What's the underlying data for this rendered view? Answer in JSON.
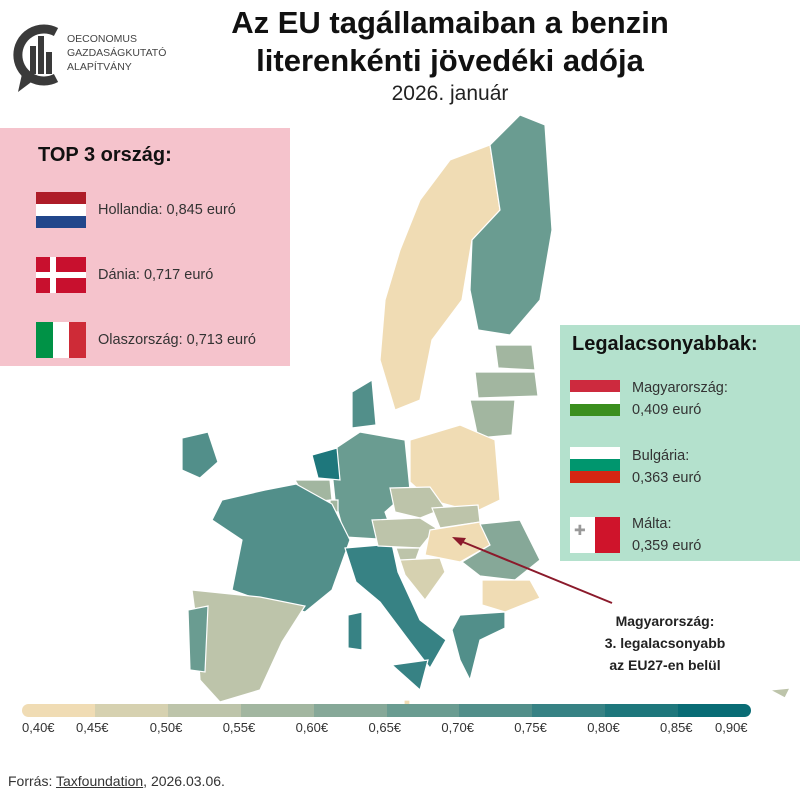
{
  "header": {
    "title_line1": "Az EU tagállamaiban a benzin",
    "title_line2": "literenkénti jövedéki adója",
    "subtitle": "2026. január"
  },
  "logo": {
    "lines": [
      "OECONOMUS",
      "GAZDASÁGKUTATÓ",
      "ALAPÍTVÁNY"
    ]
  },
  "top3": {
    "title": "TOP 3 ország:",
    "items": [
      {
        "label": "Hollandia: 0,845 euró",
        "flag": "netherlands-flag"
      },
      {
        "label": "Dánia: 0,717 euró",
        "flag": "denmark-flag"
      },
      {
        "label": "Olaszország: 0,713 euró",
        "flag": "italy-flag"
      }
    ]
  },
  "lowest": {
    "title": "Legalacsonyabbak:",
    "items": [
      {
        "country": "Magyarország:",
        "value": "0,409 euró",
        "flag": "hungary-flag"
      },
      {
        "country": "Bulgária:",
        "value": "0,363 euró",
        "flag": "bulgaria-flag"
      },
      {
        "country": "Málta:",
        "value": "0,359 euró",
        "flag": "malta-flag"
      }
    ]
  },
  "annotation": {
    "line1": "Magyarország:",
    "line2": "3. legalacsonyabb",
    "line3": "az EU27-en belül",
    "color": "#8b1a2b"
  },
  "legend": {
    "ticks": [
      "0,40€",
      "0,45€",
      "0,50€",
      "0,55€",
      "0,60€",
      "0,65€",
      "0,70€",
      "0,75€",
      "0,80€",
      "0,85€",
      "0,90€"
    ],
    "colors": [
      "#f0dcb4",
      "#d6d1b0",
      "#bdc4aa",
      "#a2b6a0",
      "#86a898",
      "#6a9c91",
      "#528f8a",
      "#378284",
      "#1e777c",
      "#096c75"
    ]
  },
  "source": {
    "prefix": "Forrás: ",
    "link": "Taxfoundation",
    "suffix": ", 2026.03.06."
  }
}
